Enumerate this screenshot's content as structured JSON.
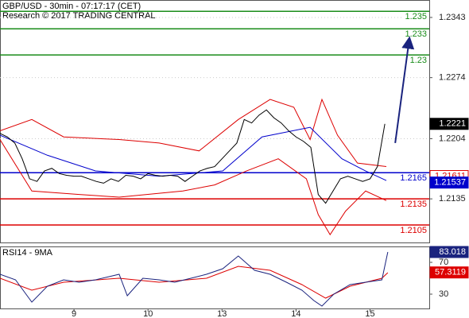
{
  "chart_data": [
    {
      "type": "line",
      "title": "GBP/USD - 30min - 07:17:17 (CET)",
      "subtitle": "Research © 2017 TRADING CENTRAL",
      "xlim": [
        -10,
        48
      ],
      "ylim": [
        1.2085,
        1.2363
      ],
      "yticks": [
        1.2343,
        1.2274,
        1.2204,
        1.2135
      ],
      "grid": true,
      "levels": [
        {
          "value": 1.235,
          "label": "1.235",
          "color": "#1a8c1a"
        },
        {
          "value": 1.233,
          "label": "1.233",
          "color": "#1a8c1a"
        },
        {
          "value": 1.23,
          "label": "1.23",
          "color": "#1a8c1a"
        },
        {
          "value": 1.2165,
          "label": "1.2165",
          "color": "#0000cc"
        },
        {
          "value": 1.2135,
          "label": "1.2135",
          "color": "#dd0000"
        },
        {
          "value": 1.2105,
          "label": "1.2105",
          "color": "#dd0000"
        }
      ],
      "last_values": [
        {
          "value": 1.2221,
          "label": "1.2221",
          "color": "#000000",
          "box": "filled"
        },
        {
          "value": 1.21611,
          "label": "1.21611",
          "color": "#dd0000",
          "box": "outline"
        },
        {
          "value": 1.21537,
          "label": "1.21537",
          "color": "#0000cc",
          "box": "filled"
        }
      ],
      "series": [
        {
          "color": "#dd0000",
          "x": [
            -10,
            -5.7,
            -1.4,
            6.1,
            11.5,
            16.9,
            22.2,
            26.5,
            29.7,
            31.9,
            33.5,
            35.6,
            38.3,
            42.2
          ],
          "values": [
            1.2213,
            1.2226,
            1.2206,
            1.2203,
            1.2199,
            1.219,
            1.2226,
            1.2249,
            1.224,
            1.2203,
            1.2249,
            1.2208,
            1.2176,
            1.2172
          ]
        },
        {
          "color": "#dd0000",
          "x": [
            -10,
            -5.7,
            0.7,
            6.1,
            14.7,
            19,
            23.3,
            27.6,
            31.4,
            33,
            34.6,
            36.7,
            39.4,
            42.2
          ],
          "values": [
            1.2203,
            1.2144,
            1.214,
            1.2137,
            1.2144,
            1.2151,
            1.2167,
            1.2181,
            1.2158,
            1.2117,
            1.2094,
            1.2121,
            1.2144,
            1.2133
          ]
        },
        {
          "color": "#0000cc",
          "x": [
            -10,
            -3.6,
            2.9,
            11.5,
            20.1,
            25.4,
            31.9,
            36.2,
            39.4,
            42.2
          ],
          "values": [
            1.2208,
            1.2185,
            1.2167,
            1.2161,
            1.2167,
            1.2206,
            1.2217,
            1.2181,
            1.2167,
            1.2156
          ]
        },
        {
          "color": "#000000",
          "x": [
            -10,
            -9,
            -8,
            -7,
            -6,
            -5,
            -4,
            -3,
            -2,
            -1,
            0,
            1,
            2,
            3,
            4,
            5,
            6,
            7,
            8,
            9,
            10,
            11,
            12,
            13,
            14,
            15,
            16,
            17,
            18,
            19,
            20,
            21,
            22,
            23,
            24,
            25,
            26,
            27,
            28,
            29,
            30,
            31,
            32,
            33,
            34,
            35,
            36,
            37,
            38,
            39,
            40,
            41,
            42
          ],
          "values": [
            1.221,
            1.2206,
            1.2199,
            1.2181,
            1.2158,
            1.2155,
            1.2167,
            1.217,
            1.2164,
            1.2162,
            1.2161,
            1.2161,
            1.2158,
            1.2155,
            1.2153,
            1.2158,
            1.2155,
            1.2162,
            1.2161,
            1.2158,
            1.2164,
            1.2162,
            1.2161,
            1.2162,
            1.2161,
            1.2155,
            1.2161,
            1.2167,
            1.217,
            1.2172,
            1.2181,
            1.219,
            1.2199,
            1.2226,
            1.2222,
            1.2231,
            1.2237,
            1.2228,
            1.2222,
            1.2213,
            1.2206,
            1.2201,
            1.2194,
            1.214,
            1.213,
            1.2144,
            1.2158,
            1.2161,
            1.2158,
            1.2155,
            1.2158,
            1.2172,
            1.2221
          ]
        },
        {
          "color": "#1a237e",
          "style": "arrow",
          "x": [
            43.4,
            45.3
          ],
          "values": [
            1.2199,
            1.2318
          ]
        }
      ]
    },
    {
      "type": "line",
      "title": "RSI14 - 9MA",
      "xlim": [
        -10,
        48
      ],
      "ylim": [
        12,
        90
      ],
      "yticks": [
        70,
        30
      ],
      "xticks": [
        {
          "value": 0,
          "label": "9"
        },
        {
          "value": 10,
          "label": "10"
        },
        {
          "value": 20,
          "label": "13"
        },
        {
          "value": 30,
          "label": "14"
        },
        {
          "value": 40,
          "label": "15"
        }
      ],
      "last_values": [
        {
          "value": 83.018,
          "label": "83.018",
          "color": "#1a237e",
          "box": "filled"
        },
        {
          "value": 57.3119,
          "label": "57.3119",
          "color": "#dd0000",
          "box": "filled"
        }
      ],
      "series": [
        {
          "color": "#dd0000",
          "x": [
            -10,
            -5.7,
            -1.4,
            6.1,
            11.5,
            17.9,
            22.2,
            26.5,
            30.8,
            34,
            37.3,
            41.6,
            42.4
          ],
          "values": [
            50,
            35,
            45,
            50,
            45,
            50,
            65,
            60,
            42,
            25,
            40,
            50,
            57
          ]
        },
        {
          "color": "#1a237e",
          "x": [
            -10,
            -7.9,
            -5.7,
            -3.6,
            -1.4,
            0.7,
            2.9,
            6.1,
            7.2,
            9.3,
            11.5,
            13.6,
            15.8,
            17.9,
            20.1,
            22.2,
            24.4,
            26.5,
            28.7,
            30.8,
            32.4,
            33.5,
            35.1,
            37.3,
            39.4,
            41.6,
            42.4
          ],
          "values": [
            55,
            48,
            20,
            40,
            48,
            45,
            48,
            55,
            28,
            50,
            48,
            45,
            50,
            55,
            62,
            78,
            60,
            55,
            45,
            35,
            22,
            15,
            30,
            42,
            45,
            48,
            83
          ]
        }
      ]
    }
  ]
}
